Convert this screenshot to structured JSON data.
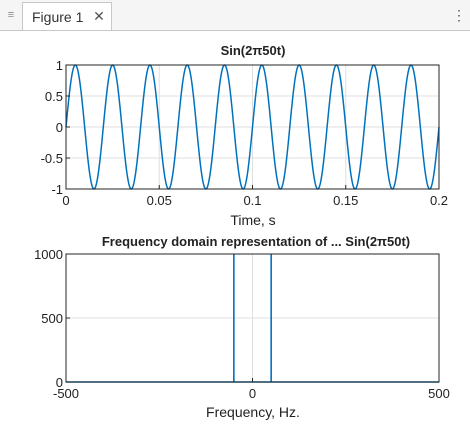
{
  "window": {
    "tab_label": "Figure 1",
    "grip_icon": "grip-icon",
    "close_icon": "close-icon",
    "menu_icon": "vertical-ellipsis-icon"
  },
  "chart_data": [
    {
      "type": "line",
      "title": "Sin(2π50t)",
      "xlabel": "Time, s",
      "ylabel": "",
      "xlim": [
        0,
        0.2
      ],
      "ylim": [
        -1,
        1
      ],
      "xticks": [
        "0",
        "0.05",
        "0.1",
        "0.15",
        "0.2"
      ],
      "yticks": [
        "1",
        "0.5",
        "0",
        "-0.5",
        "-1"
      ],
      "grid": true,
      "series": [
        {
          "frequency_hz": 50,
          "amplitude": 1,
          "phase": "sine",
          "color": "#0072bd"
        }
      ]
    },
    {
      "type": "line",
      "title": "Frequency domain representation of ... Sin(2π50t)",
      "xlabel": "Frequency, Hz.",
      "ylabel": "",
      "xlim": [
        -500,
        500
      ],
      "ylim": [
        0,
        1000
      ],
      "xticks": [
        "-500",
        "0",
        "500"
      ],
      "yticks": [
        "1000",
        "500",
        "0"
      ],
      "grid": true,
      "series": [
        {
          "peaks": [
            {
              "x": -50,
              "y": 1000
            },
            {
              "x": 50,
              "y": 1000
            }
          ],
          "baseline": 0,
          "color": "#0072bd"
        }
      ]
    }
  ]
}
